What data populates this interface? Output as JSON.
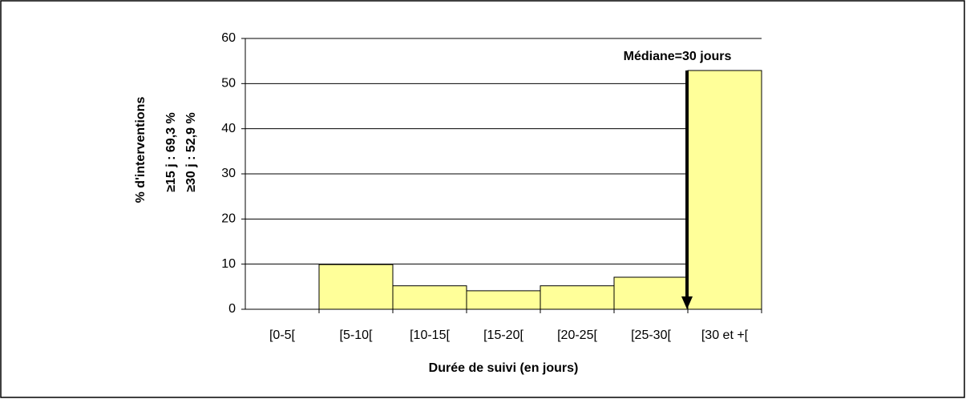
{
  "chart_data": {
    "type": "bar",
    "categories": [
      "[0-5[",
      "[5-10[",
      "[10-15[",
      "[15-20[",
      "[20-25[",
      "[25-30[",
      "[30 et +["
    ],
    "values": [
      0,
      9.9,
      5.2,
      4.1,
      5.2,
      7.1,
      52.9
    ],
    "color": "#ffff99",
    "ylim": [
      0,
      60
    ],
    "yticks": [
      0,
      10,
      20,
      30,
      40,
      50,
      60
    ],
    "grid": true,
    "xlabel": "Durée de suivi (en jours)",
    "ylabel": "% d'interventions",
    "annotations": [
      "≥15 j : 69,3 %",
      "≥30 j : 52,9 %",
      "Médiane=30 jours"
    ]
  }
}
